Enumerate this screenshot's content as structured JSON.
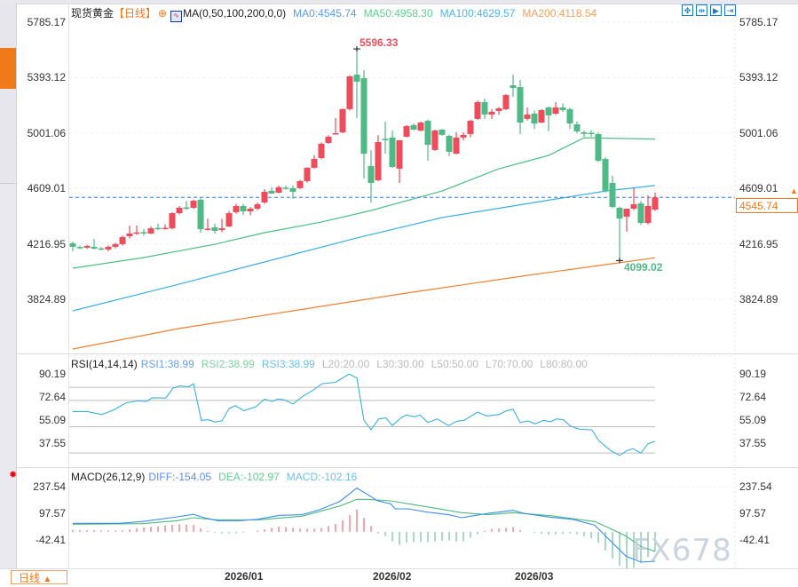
{
  "header": {
    "symbol": "现货黄金",
    "period": "【日线】",
    "ma_params": "MA(0,50,100,200,0,0)",
    "ma0": "MA0:4545.74",
    "ma50": "MA50:4958.30",
    "ma100": "MA100:4629.57",
    "ma200": "MA200:4118.54",
    "icons": [
      "crosshair-icon",
      "ma-chart-icon"
    ],
    "tool_icons": [
      "move-icon",
      "zoom-fit-icon",
      "play-icon",
      "jump-end-icon"
    ]
  },
  "rsi_legend": {
    "title": "RSI(14,14,14)",
    "rsi1": "RSI1:38.99",
    "rsi2": "RSI2:38.99",
    "rsi3": "RSI3:38.99",
    "l20": "L20:20.00",
    "l30": "L30:30.00",
    "l50": "L50:50.00",
    "l70": "L70:70.00",
    "l80": "L80:80.00"
  },
  "macd_legend": {
    "title": "MACD(26,12,9)",
    "diff": "DIFF:-154.05",
    "dea": "DEA:-102.97",
    "macd": "MACD:-102.16"
  },
  "price_axis": [
    "5785.17",
    "5393.12",
    "5001.06",
    "4609.01",
    "4216.95",
    "3824.89"
  ],
  "rsi_axis": [
    "90.19",
    "72.64",
    "55.09",
    "37.55"
  ],
  "macd_axis": [
    "237.54",
    "97.57",
    "-42.41"
  ],
  "current_price": "4545.74",
  "high_label": "5596.33",
  "low_label": "4099.02",
  "bottom": {
    "period_button": "日线",
    "dates": [
      "2026/01",
      "2026/02",
      "2026/03"
    ]
  },
  "watermark": "FX678",
  "colors": {
    "up": "#ee4b5b",
    "down": "#4fba85",
    "ma50": "#4cc083",
    "ma100": "#3ab0e2",
    "ma200": "#f08030",
    "rsi": "#3ab0e2",
    "diff": "#3a8ef0",
    "dea": "#4cbb7a",
    "accent": "#f07a1a"
  },
  "chart_data": [
    {
      "type": "candlestick",
      "title": "现货黄金",
      "x_ticks": [
        {
          "label": "2026/01",
          "index": 25.4
        },
        {
          "label": "2026/02",
          "index": 45.9
        },
        {
          "label": "2026/03",
          "index": 65.6
        }
      ],
      "y_ticks": [
        5785.17,
        5393.12,
        5001.06,
        4609.01,
        4216.95,
        3824.89
      ],
      "ohlc": [
        [
          4221,
          4234,
          4165,
          4196
        ],
        [
          4195,
          4205,
          4180,
          4188
        ],
        [
          4190,
          4210,
          4180,
          4202
        ],
        [
          4196,
          4252,
          4178,
          4183
        ],
        [
          4185,
          4195,
          4172,
          4180
        ],
        [
          4177,
          4205,
          4165,
          4196
        ],
        [
          4196,
          4225,
          4185,
          4215
        ],
        [
          4215,
          4275,
          4205,
          4265
        ],
        [
          4271,
          4346,
          4255,
          4290
        ],
        [
          4292,
          4346,
          4280,
          4298
        ],
        [
          4300,
          4320,
          4275,
          4294
        ],
        [
          4290,
          4340,
          4285,
          4327
        ],
        [
          4330,
          4360,
          4315,
          4325
        ],
        [
          4325,
          4355,
          4318,
          4330
        ],
        [
          4327,
          4440,
          4320,
          4434
        ],
        [
          4434,
          4485,
          4425,
          4472
        ],
        [
          4475,
          4520,
          4455,
          4468
        ],
        [
          4472,
          4530,
          4465,
          4522
        ],
        [
          4529,
          4540,
          4296,
          4321
        ],
        [
          4318,
          4395,
          4310,
          4325
        ],
        [
          4334,
          4360,
          4290,
          4309
        ],
        [
          4315,
          4395,
          4300,
          4327
        ],
        [
          4340,
          4448,
          4335,
          4434
        ],
        [
          4441,
          4500,
          4430,
          4485
        ],
        [
          4485,
          4500,
          4420,
          4447
        ],
        [
          4447,
          4478,
          4420,
          4466
        ],
        [
          4466,
          4510,
          4455,
          4497
        ],
        [
          4510,
          4604,
          4500,
          4585
        ],
        [
          4592,
          4617,
          4570,
          4573
        ],
        [
          4579,
          4630,
          4575,
          4617
        ],
        [
          4615,
          4630,
          4600,
          4608
        ],
        [
          4611,
          4630,
          4535,
          4585
        ],
        [
          4611,
          4670,
          4605,
          4661
        ],
        [
          4661,
          4760,
          4650,
          4755
        ],
        [
          4755,
          4845,
          4750,
          4818
        ],
        [
          4824,
          4935,
          4815,
          4925
        ],
        [
          4931,
          4985,
          4925,
          4975
        ],
        [
          4995,
          5107,
          4990,
          5000
        ],
        [
          5006,
          5175,
          5000,
          5170
        ],
        [
          5170,
          5410,
          5160,
          5402
        ],
        [
          5414,
          5596.33,
          5107,
          5364
        ],
        [
          5389,
          5446,
          4679,
          4855
        ],
        [
          4768,
          4880,
          4510,
          4648
        ],
        [
          4667,
          4985,
          4660,
          4937
        ],
        [
          4960,
          5082,
          4855,
          4950
        ],
        [
          4969,
          5019,
          4755,
          4761
        ],
        [
          4749,
          4950,
          4648,
          4950
        ],
        [
          4975,
          5057,
          4970,
          5050
        ],
        [
          5057,
          5069,
          5020,
          5025
        ],
        [
          5019,
          5082,
          5012,
          5075
        ],
        [
          5088,
          5095,
          4805,
          4918
        ],
        [
          4881,
          5025,
          4875,
          5019
        ],
        [
          5025,
          5030,
          4982,
          4988
        ],
        [
          4981,
          4990,
          4837,
          4868
        ],
        [
          4855,
          5006,
          4850,
          4969
        ],
        [
          4969,
          5006,
          4950,
          4988
        ],
        [
          4994,
          5095,
          4970,
          5088
        ],
        [
          5101,
          5230,
          5095,
          5220
        ],
        [
          5220,
          5245,
          5101,
          5132
        ],
        [
          5132,
          5170,
          5100,
          5151
        ],
        [
          5157,
          5185,
          5130,
          5176
        ],
        [
          5170,
          5275,
          5163,
          5270
        ],
        [
          5339,
          5414,
          5257,
          5320
        ],
        [
          5326,
          5377,
          4994,
          5075
        ],
        [
          5101,
          5182,
          5090,
          5132
        ],
        [
          5138,
          5160,
          5030,
          5069
        ],
        [
          5075,
          5170,
          5070,
          5163
        ],
        [
          5182,
          5190,
          5013,
          5126
        ],
        [
          5138,
          5220,
          5130,
          5182
        ],
        [
          5182,
          5210,
          5150,
          5163
        ],
        [
          5170,
          5180,
          5030,
          5069
        ],
        [
          5063,
          5082,
          5000,
          5013
        ],
        [
          5006,
          5020,
          4975,
          4995
        ],
        [
          5003,
          5020,
          4975,
          4998
        ],
        [
          4994,
          5005,
          4795,
          4805
        ],
        [
          4818,
          4830,
          4580,
          4592
        ],
        [
          4648,
          4700,
          4470,
          4478
        ],
        [
          4472,
          4480,
          4099.02,
          4396
        ],
        [
          4409,
          4466,
          4303,
          4466
        ],
        [
          4466,
          4611,
          4455,
          4497
        ],
        [
          4503,
          4520,
          4352,
          4365
        ],
        [
          4365,
          4560,
          4355,
          4485
        ],
        [
          4459,
          4580,
          4450,
          4545.74
        ]
      ],
      "ma_series": [
        {
          "name": "MA50",
          "points": [
            [
              1,
              4045
            ],
            [
              11,
              4120
            ],
            [
              21,
              4214
            ],
            [
              28,
              4296
            ],
            [
              36,
              4371
            ],
            [
              43,
              4453
            ],
            [
              53,
              4591
            ],
            [
              61,
              4748
            ],
            [
              68,
              4843
            ],
            [
              73,
              4968
            ],
            [
              83,
              4958.3
            ]
          ]
        },
        {
          "name": "MA100",
          "points": [
            [
              1,
              3743
            ],
            [
              16,
              3932
            ],
            [
              28,
              4089
            ],
            [
              41,
              4259
            ],
            [
              53,
              4403
            ],
            [
              66,
              4510
            ],
            [
              76,
              4591
            ],
            [
              83,
              4629.57
            ]
          ]
        },
        {
          "name": "MA200",
          "points": [
            [
              1,
              3473
            ],
            [
              16,
              3618
            ],
            [
              32,
              3743
            ],
            [
              48,
              3869
            ],
            [
              65,
              3994
            ],
            [
              76,
              4070
            ],
            [
              83,
              4118.54
            ]
          ]
        }
      ],
      "current_price": 4545.74,
      "annotations": [
        {
          "label": "5596.33",
          "index": 41,
          "value": 5596.33
        },
        {
          "label": "4099.02",
          "index": 78,
          "value": 4099.02
        }
      ]
    },
    {
      "type": "line",
      "title": "RSI(14,14,14)",
      "y_ticks": [
        90.19,
        72.64,
        55.09,
        37.55
      ],
      "levels": [
        20,
        30,
        50,
        70,
        80
      ],
      "points": [
        [
          1,
          61.6
        ],
        [
          3,
          61.6
        ],
        [
          5.1,
          59.3
        ],
        [
          6.75,
          62.7
        ],
        [
          8.5,
          68.2
        ],
        [
          10.1,
          69.6
        ],
        [
          11.4,
          69.3
        ],
        [
          12.2,
          72
        ],
        [
          14.1,
          71.8
        ],
        [
          15.1,
          79.3
        ],
        [
          16.1,
          81.1
        ],
        [
          17.3,
          80.4
        ],
        [
          18,
          82.7
        ],
        [
          19.1,
          54.9
        ],
        [
          20.1,
          55.3
        ],
        [
          21,
          53.6
        ],
        [
          22,
          54.4
        ],
        [
          23,
          63.8
        ],
        [
          23.9,
          66
        ],
        [
          25.1,
          62.2
        ],
        [
          26.8,
          65.3
        ],
        [
          28,
          70.9
        ],
        [
          29.1,
          69.3
        ],
        [
          29.9,
          71.1
        ],
        [
          30.8,
          70.4
        ],
        [
          32,
          67.3
        ],
        [
          33.5,
          73.6
        ],
        [
          34.8,
          77.6
        ],
        [
          36.1,
          82.7
        ],
        [
          38,
          83.8
        ],
        [
          39.9,
          90
        ],
        [
          41,
          87.1
        ],
        [
          42,
          54.9
        ],
        [
          43,
          47.8
        ],
        [
          44.1,
          56
        ],
        [
          45.1,
          56.7
        ],
        [
          46,
          50.9
        ],
        [
          47.3,
          57.1
        ],
        [
          48,
          58.9
        ],
        [
          49.1,
          57.6
        ],
        [
          49.9,
          58.9
        ],
        [
          51,
          53.1
        ],
        [
          52.3,
          56
        ],
        [
          53.9,
          50.9
        ],
        [
          55.1,
          54.2
        ],
        [
          56.1,
          54.9
        ],
        [
          58,
          61.1
        ],
        [
          59.3,
          58.2
        ],
        [
          61,
          59.3
        ],
        [
          62,
          62
        ],
        [
          63,
          63.3
        ],
        [
          64,
          53.1
        ],
        [
          65.1,
          54.4
        ],
        [
          66.1,
          52.2
        ],
        [
          67.3,
          54.9
        ],
        [
          68.3,
          53.8
        ],
        [
          69.1,
          56
        ],
        [
          70.1,
          55.3
        ],
        [
          71.1,
          50.4
        ],
        [
          72.3,
          48.2
        ],
        [
          74.1,
          47.6
        ],
        [
          75.1,
          39.3
        ],
        [
          76.8,
          31.6
        ],
        [
          78,
          28.2
        ],
        [
          79.1,
          32
        ],
        [
          79.9,
          33.3
        ],
        [
          81,
          30
        ],
        [
          82,
          37.1
        ],
        [
          83,
          38.99
        ]
      ]
    },
    {
      "type": "line",
      "title": "MACD(26,12,9)",
      "y_ticks": [
        237.54,
        97.57,
        -42.41
      ],
      "series": [
        {
          "name": "DIFF",
          "points": [
            [
              1,
              45
            ],
            [
              4.5,
              45
            ],
            [
              7.6,
              45
            ],
            [
              10.75,
              54
            ],
            [
              15.75,
              79
            ],
            [
              18,
              92
            ],
            [
              19.5,
              74
            ],
            [
              21.4,
              59
            ],
            [
              24.5,
              59
            ],
            [
              27,
              66
            ],
            [
              30.1,
              87
            ],
            [
              33.25,
              90
            ],
            [
              35.75,
              116
            ],
            [
              38.6,
              160
            ],
            [
              41,
              230
            ],
            [
              42.4,
              199
            ],
            [
              43.9,
              164
            ],
            [
              45.75,
              147
            ],
            [
              46.4,
              121
            ],
            [
              48.25,
              121
            ],
            [
              50.75,
              105
            ],
            [
              53.9,
              90
            ],
            [
              55.75,
              74
            ],
            [
              57,
              82
            ],
            [
              59.5,
              97
            ],
            [
              63,
              113
            ],
            [
              64.5,
              97
            ],
            [
              68.25,
              77
            ],
            [
              71.4,
              66
            ],
            [
              74.5,
              35
            ],
            [
              77,
              -58
            ],
            [
              78.9,
              -128
            ],
            [
              81,
              -159
            ],
            [
              83,
              -154.05
            ]
          ]
        },
        {
          "name": "DEA",
          "points": [
            [
              1,
              40
            ],
            [
              10.75,
              43
            ],
            [
              15.75,
              59
            ],
            [
              18,
              74
            ],
            [
              21.4,
              63
            ],
            [
              27,
              63
            ],
            [
              33.25,
              82
            ],
            [
              38.6,
              136
            ],
            [
              41,
              171
            ],
            [
              42.4,
              171
            ],
            [
              45.75,
              163
            ],
            [
              50.75,
              132
            ],
            [
              55.75,
              101
            ],
            [
              59.5,
              90
            ],
            [
              63,
              101
            ],
            [
              68.25,
              85
            ],
            [
              74.5,
              54
            ],
            [
              77,
              12
            ],
            [
              79,
              -24
            ],
            [
              81,
              -77
            ],
            [
              83,
              -102.97
            ]
          ]
        }
      ]
    }
  ]
}
